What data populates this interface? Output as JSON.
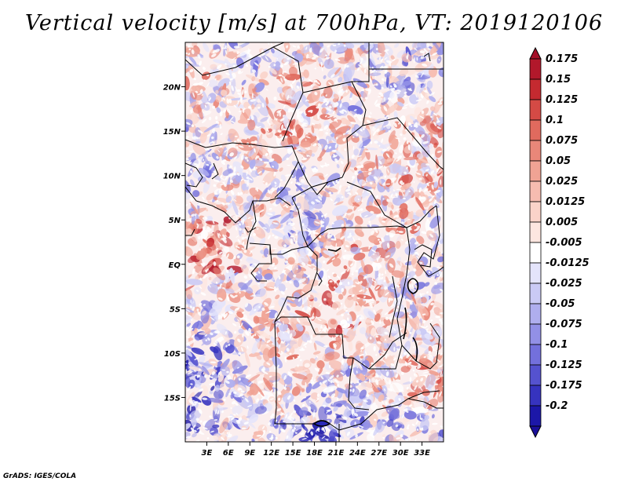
{
  "title": "Vertical velocity [m/s] at 700hPa, VT: 2019120106",
  "credit": "GrADS: IGES/COLA",
  "map": {
    "lon_range": [
      0,
      36
    ],
    "lat_range": [
      -20,
      25
    ],
    "lon_ticks": [
      {
        "value": 3,
        "label": "3E"
      },
      {
        "value": 6,
        "label": "6E"
      },
      {
        "value": 9,
        "label": "9E"
      },
      {
        "value": 12,
        "label": "12E"
      },
      {
        "value": 15,
        "label": "15E"
      },
      {
        "value": 18,
        "label": "18E"
      },
      {
        "value": 21,
        "label": "21E"
      },
      {
        "value": 24,
        "label": "24E"
      },
      {
        "value": 27,
        "label": "27E"
      },
      {
        "value": 30,
        "label": "30E"
      },
      {
        "value": 33,
        "label": "33E"
      }
    ],
    "lat_ticks": [
      {
        "value": 20,
        "label": "20N"
      },
      {
        "value": 15,
        "label": "15N"
      },
      {
        "value": 10,
        "label": "10N"
      },
      {
        "value": 5,
        "label": "5N"
      },
      {
        "value": 0,
        "label": "EQ"
      },
      {
        "value": -5,
        "label": "5S"
      },
      {
        "value": -10,
        "label": "10S"
      },
      {
        "value": -15,
        "label": "15S"
      }
    ]
  },
  "colorbar": {
    "levels": [
      {
        "label": "0.175",
        "color": "#b2182b"
      },
      {
        "label": "0.15",
        "color": "#c42a30"
      },
      {
        "label": "0.125",
        "color": "#d44a45"
      },
      {
        "label": "0.1",
        "color": "#e06a5e"
      },
      {
        "label": "0.075",
        "color": "#e98779"
      },
      {
        "label": "0.05",
        "color": "#f0a394"
      },
      {
        "label": "0.025",
        "color": "#f6bcb0"
      },
      {
        "label": "0.0125",
        "color": "#fad3c9"
      },
      {
        "label": "0.005",
        "color": "#fde6e0"
      },
      {
        "label": "-0.005",
        "color": "#ffffff"
      },
      {
        "label": "-0.0125",
        "color": "#e4e4fb"
      },
      {
        "label": "-0.025",
        "color": "#cacaf5"
      },
      {
        "label": "-0.05",
        "color": "#afaeee"
      },
      {
        "label": "-0.075",
        "color": "#9290e6"
      },
      {
        "label": "-0.1",
        "color": "#7370dc"
      },
      {
        "label": "-0.125",
        "color": "#5552cf"
      },
      {
        "label": "-0.175",
        "color": "#3633bf"
      },
      {
        "label": "-0.2",
        "color": "#1c17a8"
      }
    ],
    "top_arrow_color": "#a50f28",
    "bottom_arrow_color": "#1a0f9a"
  }
}
